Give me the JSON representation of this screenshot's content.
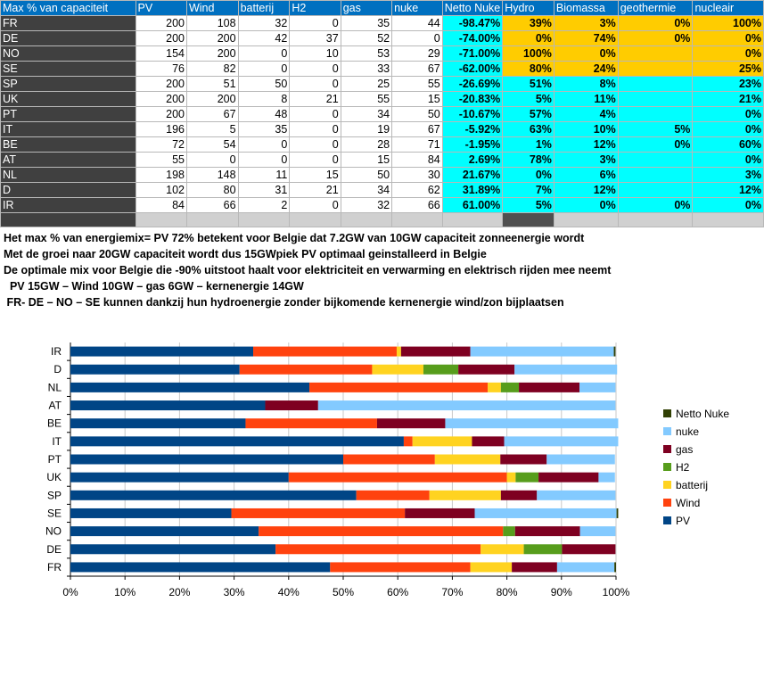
{
  "table": {
    "headers": [
      "Max % van capaciteit",
      "PV",
      "Wind",
      "batterij",
      "H2",
      "gas",
      "nuke",
      "Netto Nuke",
      "Hydro",
      "Biomassa",
      "geothermie",
      "nucleair"
    ],
    "rows": [
      {
        "country": "FR",
        "pv": "200",
        "wind": "108",
        "bat": "32",
        "h2": "0",
        "gas": "35",
        "nuke": "44",
        "netto": "-98.47%",
        "hydro": "39%",
        "bio": "3%",
        "geo": "0%",
        "nuc": "100%",
        "hydro_c": "gold",
        "bio_c": "gold",
        "geo_c": "gold",
        "nuc_c": "gold"
      },
      {
        "country": "DE",
        "pv": "200",
        "wind": "200",
        "bat": "42",
        "h2": "37",
        "gas": "52",
        "nuke": "0",
        "netto": "-74.00%",
        "hydro": "0%",
        "bio": "74%",
        "geo": "0%",
        "nuc": "0%",
        "hydro_c": "gold",
        "bio_c": "gold",
        "geo_c": "gold",
        "nuc_c": "gold"
      },
      {
        "country": "NO",
        "pv": "154",
        "wind": "200",
        "bat": "0",
        "h2": "10",
        "gas": "53",
        "nuke": "29",
        "netto": "-71.00%",
        "hydro": "100%",
        "bio": "0%",
        "geo": "",
        "nuc": "0%",
        "hydro_c": "gold",
        "bio_c": "gold",
        "geo_c": "gold",
        "nuc_c": "gold"
      },
      {
        "country": "SE",
        "pv": "76",
        "wind": "82",
        "bat": "0",
        "h2": "0",
        "gas": "33",
        "nuke": "67",
        "netto": "-62.00%",
        "hydro": "80%",
        "bio": "24%",
        "geo": "",
        "nuc": "25%",
        "hydro_c": "gold",
        "bio_c": "gold",
        "geo_c": "gold",
        "nuc_c": "gold"
      },
      {
        "country": "SP",
        "pv": "200",
        "wind": "51",
        "bat": "50",
        "h2": "0",
        "gas": "25",
        "nuke": "55",
        "netto": "-26.69%",
        "hydro": "51%",
        "bio": "8%",
        "geo": "",
        "nuc": "23%",
        "hydro_c": "cyan",
        "bio_c": "cyan",
        "geo_c": "cyan",
        "nuc_c": "cyan"
      },
      {
        "country": "UK",
        "pv": "200",
        "wind": "200",
        "bat": "8",
        "h2": "21",
        "gas": "55",
        "nuke": "15",
        "netto": "-20.83%",
        "hydro": "5%",
        "bio": "11%",
        "geo": "",
        "nuc": "21%",
        "hydro_c": "cyan",
        "bio_c": "cyan",
        "geo_c": "cyan",
        "nuc_c": "cyan"
      },
      {
        "country": "PT",
        "pv": "200",
        "wind": "67",
        "bat": "48",
        "h2": "0",
        "gas": "34",
        "nuke": "50",
        "netto": "-10.67%",
        "hydro": "57%",
        "bio": "4%",
        "geo": "",
        "nuc": "0%",
        "hydro_c": "cyan",
        "bio_c": "cyan",
        "geo_c": "cyan",
        "nuc_c": "cyan"
      },
      {
        "country": "IT",
        "pv": "196",
        "wind": "5",
        "bat": "35",
        "h2": "0",
        "gas": "19",
        "nuke": "67",
        "netto": "-5.92%",
        "hydro": "63%",
        "bio": "10%",
        "geo": "5%",
        "nuc": "0%",
        "hydro_c": "cyan",
        "bio_c": "cyan",
        "geo_c": "cyan",
        "nuc_c": "cyan"
      },
      {
        "country": "BE",
        "pv": "72",
        "wind": "54",
        "bat": "0",
        "h2": "0",
        "gas": "28",
        "nuke": "71",
        "netto": "-1.95%",
        "hydro": "1%",
        "bio": "12%",
        "geo": "0%",
        "nuc": "60%",
        "hydro_c": "cyan",
        "bio_c": "cyan",
        "geo_c": "cyan",
        "nuc_c": "cyan"
      },
      {
        "country": "AT",
        "pv": "55",
        "wind": "0",
        "bat": "0",
        "h2": "0",
        "gas": "15",
        "nuke": "84",
        "netto": "2.69%",
        "hydro": "78%",
        "bio": "3%",
        "geo": "",
        "nuc": "0%",
        "hydro_c": "cyan",
        "bio_c": "cyan",
        "geo_c": "cyan",
        "nuc_c": "cyan"
      },
      {
        "country": "NL",
        "pv": "198",
        "wind": "148",
        "bat": "11",
        "h2": "15",
        "gas": "50",
        "nuke": "30",
        "netto": "21.67%",
        "hydro": "0%",
        "bio": "6%",
        "geo": "",
        "nuc": "3%",
        "hydro_c": "cyan",
        "bio_c": "cyan",
        "geo_c": "cyan",
        "nuc_c": "cyan"
      },
      {
        "country": "D",
        "pv": "102",
        "wind": "80",
        "bat": "31",
        "h2": "21",
        "gas": "34",
        "nuke": "62",
        "netto": "31.89%",
        "hydro": "7%",
        "bio": "12%",
        "geo": "",
        "nuc": "12%",
        "hydro_c": "cyan",
        "bio_c": "cyan",
        "geo_c": "cyan",
        "nuc_c": "cyan"
      },
      {
        "country": "IR",
        "pv": "84",
        "wind": "66",
        "bat": "2",
        "h2": "0",
        "gas": "32",
        "nuke": "66",
        "netto": "61.00%",
        "hydro": "5%",
        "bio": "0%",
        "geo": "0%",
        "nuc": "0%",
        "hydro_c": "cyan",
        "bio_c": "cyan",
        "geo_c": "cyan",
        "nuc_c": "cyan"
      }
    ]
  },
  "notes": [
    "Het max % van energiemix= PV 72% betekent voor Belgie dat 7.2GW  van 10GW capaciteit zonneenergie wordt",
    "Met de groei naar 20GW capaciteit wordt dus 15GWpiek PV optimaal geinstalleerd  in Belgie",
    "De optimale mix voor Belgie die -90% uitstoot haalt voor elektriciteit en verwarming en elektrisch rijden mee neemt",
    "  PV 15GW – Wind 10GW – gas 6GW – kernenergie 14GW",
    " FR- DE – NO – SE kunnen dankzij hun hydroenergie zonder bijkomende kernenergie wind/zon bijplaatsen"
  ],
  "chart_data": {
    "type": "bar",
    "orientation": "horizontal",
    "stacked": "100%",
    "categories": [
      "FR",
      "DE",
      "NO",
      "SE",
      "SP",
      "UK",
      "PT",
      "IT",
      "BE",
      "AT",
      "NL",
      "D",
      "IR"
    ],
    "series": [
      {
        "name": "PV",
        "color": "#004586",
        "values": [
          47.6,
          37.6,
          34.5,
          29.5,
          52.4,
          40.0,
          50.0,
          61.1,
          32.1,
          35.7,
          43.8,
          31.0,
          33.5
        ]
      },
      {
        "name": "Wind",
        "color": "#ff420e",
        "values": [
          25.7,
          37.6,
          44.8,
          31.8,
          13.4,
          40.0,
          16.8,
          1.6,
          24.1,
          0,
          32.7,
          24.3,
          26.3
        ]
      },
      {
        "name": "batterij",
        "color": "#ffd320",
        "values": [
          7.6,
          7.9,
          0,
          0,
          13.1,
          1.6,
          12.0,
          10.9,
          0,
          0,
          2.4,
          9.4,
          0.8
        ]
      },
      {
        "name": "H2",
        "color": "#579d1c",
        "values": [
          0,
          7.0,
          2.2,
          0,
          0,
          4.2,
          0,
          0,
          0,
          0,
          3.3,
          6.4,
          0
        ]
      },
      {
        "name": "gas",
        "color": "#7e0021",
        "values": [
          8.3,
          9.8,
          11.9,
          12.8,
          6.6,
          11.0,
          8.5,
          5.9,
          12.5,
          9.7,
          11.1,
          10.3,
          12.7
        ]
      },
      {
        "name": "nuke",
        "color": "#83caff",
        "values": [
          10.5,
          0,
          6.5,
          26.0,
          14.4,
          3.0,
          12.5,
          20.9,
          31.7,
          54.5,
          6.6,
          18.8,
          26.3
        ]
      },
      {
        "name": "Netto Nuke",
        "color": "#314004",
        "values": [
          0.3,
          0,
          0,
          0.3,
          0,
          0,
          0,
          0,
          0,
          0,
          0,
          0,
          0.3
        ]
      }
    ],
    "xlim": [
      0,
      100
    ],
    "x_ticks": [
      "0%",
      "10%",
      "20%",
      "30%",
      "40%",
      "50%",
      "60%",
      "70%",
      "80%",
      "90%",
      "100%"
    ],
    "grid": true,
    "legend_position": "right",
    "legend_order": [
      "Netto Nuke",
      "nuke",
      "gas",
      "H2",
      "batterij",
      "Wind",
      "PV"
    ]
  }
}
